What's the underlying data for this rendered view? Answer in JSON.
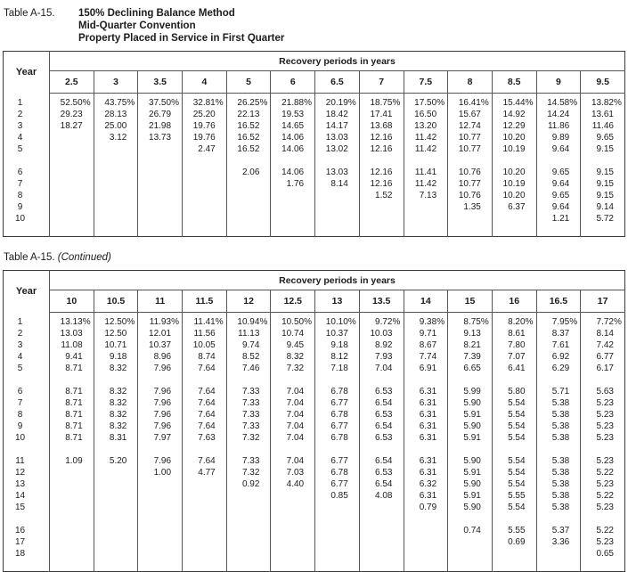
{
  "page": {
    "title_label": "Table A-15.",
    "title_lines": [
      "150% Declining Balance Method",
      "Mid-Quarter Convention",
      "Property Placed in Service in First Quarter"
    ],
    "continued_label": "Table A-15.",
    "continued_suffix": "(Continued)"
  },
  "tables": [
    {
      "year_header": "Year",
      "span_header": "Recovery periods in years",
      "periods": [
        "2.5",
        "3",
        "3.5",
        "4",
        "5",
        "6",
        "6.5",
        "7",
        "7.5",
        "8",
        "8.5",
        "9",
        "9.5"
      ],
      "row_groups": [
        {
          "rows": [
            {
              "year": "1",
              "cells": [
                "52.50%",
                "43.75%",
                "37.50%",
                "32.81%",
                "26.25%",
                "21.88%",
                "20.19%",
                "18.75%",
                "17.50%",
                "16.41%",
                "15.44%",
                "14.58%",
                "13.82%"
              ]
            },
            {
              "year": "2",
              "cells": [
                "29.23",
                "28.13",
                "26.79",
                "25.20",
                "22.13",
                "19.53",
                "18.42",
                "17.41",
                "16.50",
                "15.67",
                "14.92",
                "14.24",
                "13.61"
              ]
            },
            {
              "year": "3",
              "cells": [
                "18.27",
                "25.00",
                "21.98",
                "19.76",
                "16.52",
                "14.65",
                "14.17",
                "13.68",
                "13.20",
                "12.74",
                "12.29",
                "11.86",
                "11.46"
              ]
            },
            {
              "year": "4",
              "cells": [
                "",
                "3.12",
                "13.73",
                "19.76",
                "16.52",
                "14.06",
                "13.03",
                "12.16",
                "11.42",
                "10.77",
                "10.20",
                "9.89",
                "9.65"
              ]
            },
            {
              "year": "5",
              "cells": [
                "",
                "",
                "",
                "2.47",
                "16.52",
                "14.06",
                "13.02",
                "12.16",
                "11.42",
                "10.77",
                "10.19",
                "9.64",
                "9.15"
              ]
            }
          ]
        },
        {
          "rows": [
            {
              "year": "6",
              "cells": [
                "",
                "",
                "",
                "",
                "2.06",
                "14.06",
                "13.03",
                "12.16",
                "11.41",
                "10.76",
                "10.20",
                "9.65",
                "9.15"
              ]
            },
            {
              "year": "7",
              "cells": [
                "",
                "",
                "",
                "",
                "",
                "1.76",
                "8.14",
                "12.16",
                "11.42",
                "10.77",
                "10.19",
                "9.64",
                "9.15"
              ]
            },
            {
              "year": "8",
              "cells": [
                "",
                "",
                "",
                "",
                "",
                "",
                "",
                "1.52",
                "7.13",
                "10.76",
                "10.20",
                "9.65",
                "9.15"
              ]
            },
            {
              "year": "9",
              "cells": [
                "",
                "",
                "",
                "",
                "",
                "",
                "",
                "",
                "",
                "1.35",
                "6.37",
                "9.64",
                "9.14"
              ]
            },
            {
              "year": "10",
              "cells": [
                "",
                "",
                "",
                "",
                "",
                "",
                "",
                "",
                "",
                "",
                "",
                "1.21",
                "5.72"
              ]
            }
          ]
        }
      ]
    },
    {
      "year_header": "Year",
      "span_header": "Recovery periods in years",
      "periods": [
        "10",
        "10.5",
        "11",
        "11.5",
        "12",
        "12.5",
        "13",
        "13.5",
        "14",
        "15",
        "16",
        "16.5",
        "17"
      ],
      "row_groups": [
        {
          "rows": [
            {
              "year": "1",
              "cells": [
                "13.13%",
                "12.50%",
                "11.93%",
                "11.41%",
                "10.94%",
                "10.50%",
                "10.10%",
                "9.72%",
                "9.38%",
                "8.75%",
                "8.20%",
                "7.95%",
                "7.72%"
              ]
            },
            {
              "year": "2",
              "cells": [
                "13.03",
                "12.50",
                "12.01",
                "11.56",
                "11.13",
                "10.74",
                "10.37",
                "10.03",
                "9.71",
                "9.13",
                "8.61",
                "8.37",
                "8.14"
              ]
            },
            {
              "year": "3",
              "cells": [
                "11.08",
                "10.71",
                "10.37",
                "10.05",
                "9.74",
                "9.45",
                "9.18",
                "8.92",
                "8.67",
                "8.21",
                "7.80",
                "7.61",
                "7.42"
              ]
            },
            {
              "year": "4",
              "cells": [
                "9.41",
                "9.18",
                "8.96",
                "8.74",
                "8.52",
                "8.32",
                "8.12",
                "7.93",
                "7.74",
                "7.39",
                "7.07",
                "6.92",
                "6.77"
              ]
            },
            {
              "year": "5",
              "cells": [
                "8.71",
                "8.32",
                "7.96",
                "7.64",
                "7.46",
                "7.32",
                "7.18",
                "7.04",
                "6.91",
                "6.65",
                "6.41",
                "6.29",
                "6.17"
              ]
            }
          ]
        },
        {
          "rows": [
            {
              "year": "6",
              "cells": [
                "8.71",
                "8.32",
                "7.96",
                "7.64",
                "7.33",
                "7.04",
                "6.78",
                "6.53",
                "6.31",
                "5.99",
                "5.80",
                "5.71",
                "5.63"
              ]
            },
            {
              "year": "7",
              "cells": [
                "8.71",
                "8.32",
                "7.96",
                "7.64",
                "7.33",
                "7.04",
                "6.77",
                "6.54",
                "6.31",
                "5.90",
                "5.54",
                "5.38",
                "5.23"
              ]
            },
            {
              "year": "8",
              "cells": [
                "8.71",
                "8.32",
                "7.96",
                "7.64",
                "7.33",
                "7.04",
                "6.78",
                "6.53",
                "6.31",
                "5.91",
                "5.54",
                "5.38",
                "5.23"
              ]
            },
            {
              "year": "9",
              "cells": [
                "8.71",
                "8.32",
                "7.96",
                "7.64",
                "7.33",
                "7.04",
                "6.77",
                "6.54",
                "6.31",
                "5.90",
                "5.54",
                "5.38",
                "5.23"
              ]
            },
            {
              "year": "10",
              "cells": [
                "8.71",
                "8.31",
                "7.97",
                "7.63",
                "7.32",
                "7.04",
                "6.78",
                "6.53",
                "6.31",
                "5.91",
                "5.54",
                "5.38",
                "5.23"
              ]
            }
          ]
        },
        {
          "rows": [
            {
              "year": "11",
              "cells": [
                "1.09",
                "5.20",
                "7.96",
                "7.64",
                "7.33",
                "7.04",
                "6.77",
                "6.54",
                "6.31",
                "5.90",
                "5.54",
                "5.38",
                "5.23"
              ]
            },
            {
              "year": "12",
              "cells": [
                "",
                "",
                "1.00",
                "4.77",
                "7.32",
                "7.03",
                "6.78",
                "6.53",
                "6.31",
                "5.91",
                "5.54",
                "5.38",
                "5.22"
              ]
            },
            {
              "year": "13",
              "cells": [
                "",
                "",
                "",
                "",
                "0.92",
                "4.40",
                "6.77",
                "6.54",
                "6.32",
                "5.90",
                "5.54",
                "5.38",
                "5.23"
              ]
            },
            {
              "year": "14",
              "cells": [
                "",
                "",
                "",
                "",
                "",
                "",
                "0.85",
                "4.08",
                "6.31",
                "5.91",
                "5.55",
                "5.38",
                "5.22"
              ]
            },
            {
              "year": "15",
              "cells": [
                "",
                "",
                "",
                "",
                "",
                "",
                "",
                "",
                "0.79",
                "5.90",
                "5.54",
                "5.38",
                "5.23"
              ]
            }
          ]
        },
        {
          "rows": [
            {
              "year": "16",
              "cells": [
                "",
                "",
                "",
                "",
                "",
                "",
                "",
                "",
                "",
                "0.74",
                "5.55",
                "5.37",
                "5.22"
              ]
            },
            {
              "year": "17",
              "cells": [
                "",
                "",
                "",
                "",
                "",
                "",
                "",
                "",
                "",
                "",
                "0.69",
                "3.36",
                "5.23"
              ]
            },
            {
              "year": "18",
              "cells": [
                "",
                "",
                "",
                "",
                "",
                "",
                "",
                "",
                "",
                "",
                "",
                "",
                "0.65"
              ]
            }
          ]
        }
      ]
    }
  ]
}
